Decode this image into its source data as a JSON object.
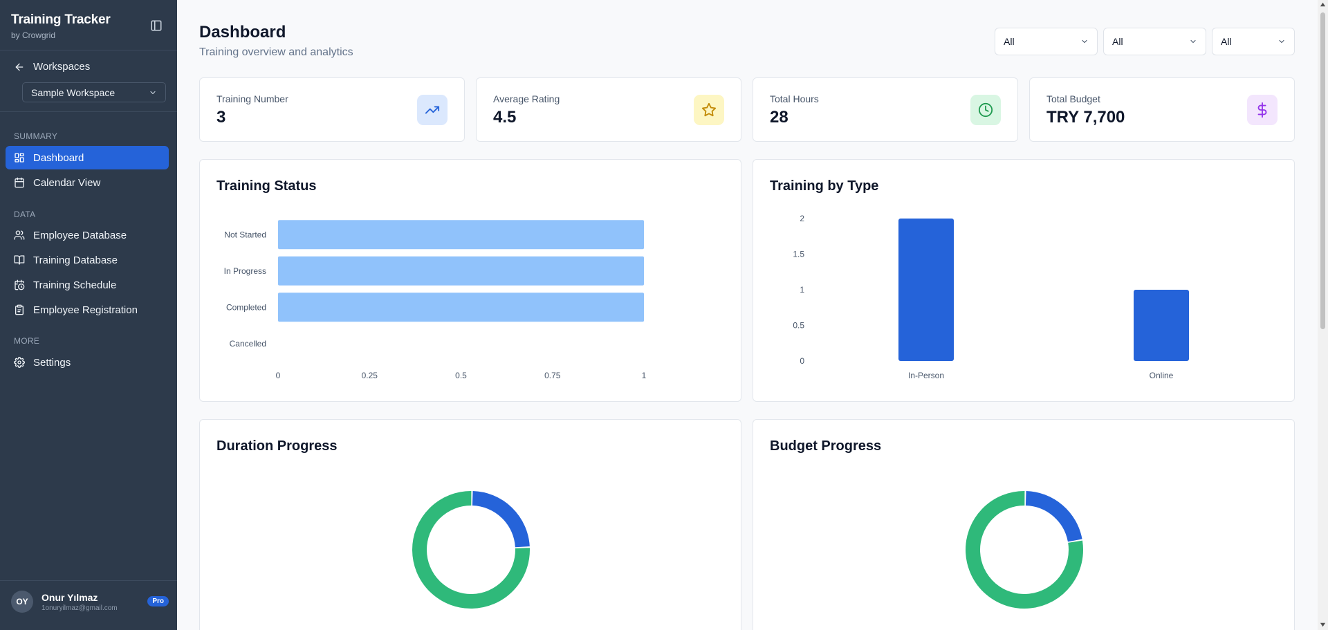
{
  "app": {
    "title": "Training Tracker",
    "subtitle": "by Crowgrid"
  },
  "sidebar": {
    "back_label": "Workspaces",
    "workspace": "Sample Workspace",
    "sections": [
      {
        "label": "SUMMARY",
        "items": [
          {
            "label": "Dashboard",
            "icon": "dashboard-icon",
            "active": true
          },
          {
            "label": "Calendar View",
            "icon": "calendar-icon",
            "active": false
          }
        ]
      },
      {
        "label": "DATA",
        "items": [
          {
            "label": "Employee Database",
            "icon": "users-icon",
            "active": false
          },
          {
            "label": "Training Database",
            "icon": "book-icon",
            "active": false
          },
          {
            "label": "Training Schedule",
            "icon": "calendar-clock-icon",
            "active": false
          },
          {
            "label": "Employee Registration",
            "icon": "clipboard-icon",
            "active": false
          }
        ]
      },
      {
        "label": "MORE",
        "items": [
          {
            "label": "Settings",
            "icon": "gear-icon",
            "active": false
          }
        ]
      }
    ]
  },
  "user": {
    "initials": "OY",
    "name": "Onur Yılmaz",
    "email": "1onuryilmaz@gmail.com",
    "badge": "Pro"
  },
  "header": {
    "title": "Dashboard",
    "subtitle": "Training overview and analytics",
    "filters": [
      "All",
      "All",
      "All"
    ]
  },
  "stats": [
    {
      "label": "Training Number",
      "value": "3",
      "icon": "trending-up-icon",
      "icon_bg": "#dbe8fd",
      "icon_color": "#2563d9"
    },
    {
      "label": "Average Rating",
      "value": "4.5",
      "icon": "star-icon",
      "icon_bg": "#fdf6c3",
      "icon_color": "#c28a06"
    },
    {
      "label": "Total Hours",
      "value": "28",
      "icon": "clock-icon",
      "icon_bg": "#d9f6e3",
      "icon_color": "#1f9a4f"
    },
    {
      "label": "Total Budget",
      "value": "TRY 7,700",
      "icon": "dollar-icon",
      "icon_bg": "#f3e6fd",
      "icon_color": "#9333ea"
    }
  ],
  "charts": {
    "status_title": "Training Status",
    "type_title": "Training by Type",
    "duration_title": "Duration Progress",
    "budget_title": "Budget Progress"
  },
  "chart_data": [
    {
      "type": "bar",
      "orientation": "horizontal",
      "title": "Training Status",
      "categories": [
        "Not Started",
        "In Progress",
        "Completed",
        "Cancelled"
      ],
      "values": [
        1,
        1,
        1,
        0
      ],
      "xlim": [
        0,
        1
      ],
      "xticks": [
        "0",
        "0.25",
        "0.5",
        "0.75",
        "1"
      ],
      "color": "#90c2fb",
      "grid": false
    },
    {
      "type": "bar",
      "title": "Training by Type",
      "categories": [
        "In-Person",
        "Online"
      ],
      "values": [
        2,
        1
      ],
      "ylim": [
        0,
        2
      ],
      "yticks": [
        "0",
        "0.5",
        "1",
        "1.5",
        "2"
      ],
      "color": "#2563d9",
      "grid": false
    },
    {
      "type": "pie",
      "donut": true,
      "title": "Duration Progress",
      "values": [
        24,
        76
      ],
      "colors": [
        "#2563d9",
        "#2fb97a"
      ]
    },
    {
      "type": "pie",
      "donut": true,
      "title": "Budget Progress",
      "values": [
        22,
        78
      ],
      "colors": [
        "#2563d9",
        "#2fb97a"
      ]
    }
  ]
}
